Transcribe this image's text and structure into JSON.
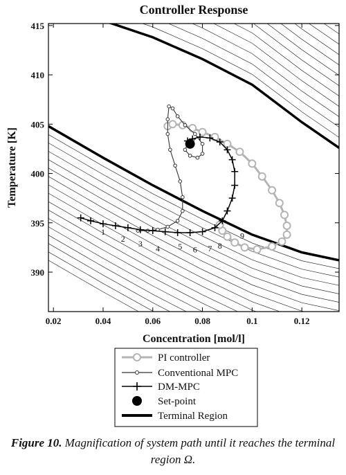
{
  "chart_data": {
    "type": "line",
    "title": "Controller Response",
    "xlabel": "Concentration [mol/l]",
    "ylabel": "Temperature [K]",
    "xlim": [
      0.018,
      0.135
    ],
    "ylim": [
      386,
      415.2
    ],
    "xticks": [
      0.02,
      0.04,
      0.06,
      0.08,
      0.1,
      0.12
    ],
    "xtick_labels": [
      "0.02",
      "0.04",
      "0.06",
      "0.08",
      "0.1",
      "0.12"
    ],
    "yticks": [
      390,
      395,
      400,
      405,
      410,
      415
    ],
    "ytick_labels": [
      "390",
      "395",
      "400",
      "405",
      "410",
      "415"
    ],
    "grid": false,
    "legend_position": "below",
    "series": [
      {
        "name": "PI controller",
        "color": "#b4b4b4",
        "marker": "open-circle",
        "points": [
          [
            0.066,
            404.8
          ],
          [
            0.068,
            405.0
          ],
          [
            0.072,
            404.9
          ],
          [
            0.076,
            404.6
          ],
          [
            0.08,
            404.2
          ],
          [
            0.085,
            403.7
          ],
          [
            0.09,
            403.0
          ],
          [
            0.095,
            402.2
          ],
          [
            0.1,
            401.0
          ],
          [
            0.104,
            399.7
          ],
          [
            0.108,
            398.3
          ],
          [
            0.111,
            397.0
          ],
          [
            0.113,
            395.8
          ],
          [
            0.114,
            394.7
          ],
          [
            0.114,
            393.8
          ],
          [
            0.112,
            393.1
          ],
          [
            0.108,
            392.6
          ],
          [
            0.102,
            392.3
          ],
          [
            0.097,
            392.5
          ],
          [
            0.093,
            393.0
          ],
          [
            0.09,
            393.6
          ],
          [
            0.088,
            394.2
          ],
          [
            0.087,
            394.8
          ]
        ]
      },
      {
        "name": "Conventional MPC",
        "color": "#333333",
        "marker": "small-circle",
        "points": [
          [
            0.054,
            394.2
          ],
          [
            0.058,
            394.2
          ],
          [
            0.062,
            394.3
          ],
          [
            0.066,
            394.6
          ],
          [
            0.07,
            395.2
          ],
          [
            0.072,
            396.2
          ],
          [
            0.072,
            397.6
          ],
          [
            0.071,
            399.2
          ],
          [
            0.069,
            400.8
          ],
          [
            0.067,
            402.4
          ],
          [
            0.066,
            404.0
          ],
          [
            0.066,
            405.5
          ],
          [
            0.0665,
            406.8
          ],
          [
            0.068,
            406.6
          ],
          [
            0.07,
            405.8
          ],
          [
            0.073,
            404.9
          ],
          [
            0.077,
            404.0
          ],
          [
            0.08,
            403.0
          ],
          [
            0.08,
            402.0
          ],
          [
            0.078,
            401.6
          ],
          [
            0.075,
            401.8
          ],
          [
            0.073,
            402.4
          ],
          [
            0.074,
            403.0
          ],
          [
            0.076,
            403.4
          ]
        ]
      },
      {
        "name": "DM-MPC",
        "color": "#000000",
        "marker": "plus",
        "points": [
          [
            0.031,
            395.5
          ],
          [
            0.035,
            395.2
          ],
          [
            0.04,
            394.9
          ],
          [
            0.045,
            394.7
          ],
          [
            0.05,
            394.5
          ],
          [
            0.055,
            394.3
          ],
          [
            0.06,
            394.2
          ],
          [
            0.065,
            394.1
          ],
          [
            0.07,
            394.0
          ],
          [
            0.075,
            394.0
          ],
          [
            0.08,
            394.1
          ],
          [
            0.085,
            394.5
          ],
          [
            0.088,
            395.2
          ],
          [
            0.09,
            396.2
          ],
          [
            0.092,
            397.5
          ],
          [
            0.093,
            398.8
          ],
          [
            0.093,
            400.2
          ],
          [
            0.092,
            401.4
          ],
          [
            0.09,
            402.4
          ],
          [
            0.087,
            403.2
          ],
          [
            0.083,
            403.6
          ],
          [
            0.079,
            403.7
          ],
          [
            0.076,
            403.5
          ],
          [
            0.074,
            403.3
          ]
        ]
      },
      {
        "name": "Set-point",
        "color": "#000000",
        "marker": "filled-circle",
        "points": [
          [
            0.075,
            403.0
          ]
        ]
      },
      {
        "name": "Terminal Region",
        "color": "#000000",
        "marker": "thick-line",
        "lower_boundary": [
          [
            0.018,
            404.8
          ],
          [
            0.04,
            401.6
          ],
          [
            0.06,
            398.8
          ],
          [
            0.08,
            396.2
          ],
          [
            0.1,
            393.8
          ],
          [
            0.12,
            392.0
          ],
          [
            0.135,
            391.2
          ]
        ],
        "upper_boundary": [
          [
            0.04,
            415.5
          ],
          [
            0.06,
            413.8
          ],
          [
            0.08,
            411.6
          ],
          [
            0.1,
            409.0
          ],
          [
            0.12,
            405.2
          ],
          [
            0.135,
            402.6
          ]
        ]
      }
    ],
    "level_labels": [
      "1",
      "2",
      "3",
      "4",
      "5",
      "6",
      "7",
      "8",
      "9"
    ],
    "level_label_positions": [
      [
        0.04,
        393.8
      ],
      [
        0.048,
        393.1
      ],
      [
        0.055,
        392.6
      ],
      [
        0.062,
        392.1
      ],
      [
        0.071,
        392.3
      ],
      [
        0.077,
        392.0
      ],
      [
        0.083,
        392.1
      ],
      [
        0.087,
        392.4
      ],
      [
        0.096,
        393.4
      ]
    ]
  },
  "legend": {
    "items": [
      {
        "label": "PI controller",
        "style": "pi"
      },
      {
        "label": "Conventional MPC",
        "style": "conv"
      },
      {
        "label": "DM-MPC",
        "style": "dm"
      },
      {
        "label": "Set-point",
        "style": "sp"
      },
      {
        "label": "Terminal Region",
        "style": "tr"
      }
    ]
  },
  "caption": {
    "label": "Figure 10.",
    "text": "Magnification of system path until it reaches the terminal region Ω."
  }
}
